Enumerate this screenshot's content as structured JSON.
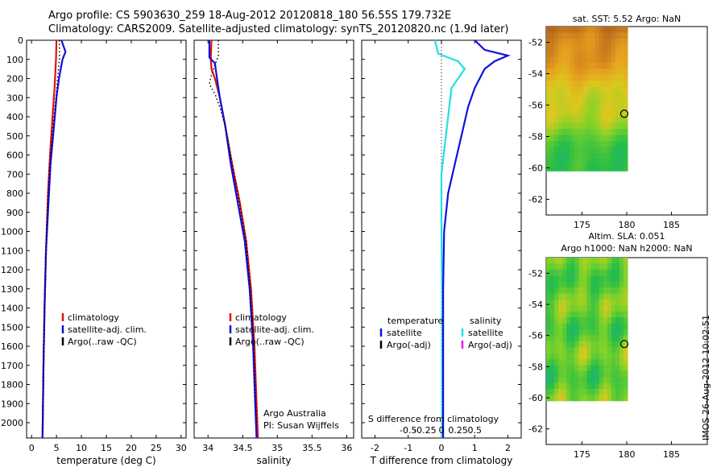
{
  "header": {
    "line1": "Argo profile: CS 5903630_259 18-Aug-2012 20120818_180 56.55S 179.732E",
    "line2": "Climatology: CARS2009. Satellite-adjusted climatology: synTS_20120820.nc (1.9d later)"
  },
  "stamp": "IMOS 26-Aug-2012 10:02:51",
  "colors": {
    "climatology": "#e01010",
    "satellite": "#1010e0",
    "argo": "#000000",
    "satellite_s": "#20e0e0",
    "argo_adj_s": "#e020e0"
  },
  "chart_data": [
    {
      "type": "line",
      "xlabel": "temperature (deg C)",
      "xlim": [
        -1,
        31
      ],
      "ylim": [
        2080,
        0
      ],
      "xticks": [
        0,
        5,
        10,
        15,
        20,
        25,
        30
      ],
      "yticks": [
        0,
        100,
        200,
        300,
        400,
        500,
        600,
        700,
        800,
        900,
        1000,
        1100,
        1200,
        1300,
        1400,
        1500,
        1600,
        1700,
        1800,
        1900,
        2000
      ],
      "legend": [
        "climatology",
        "satellite-adj. clim.",
        "Argo(..raw -QC)"
      ],
      "series": [
        {
          "name": "climatology",
          "points": [
            [
              5.0,
              0
            ],
            [
              4.9,
              100
            ],
            [
              4.6,
              250
            ],
            [
              4.2,
              400
            ],
            [
              3.7,
              600
            ],
            [
              3.3,
              800
            ],
            [
              2.9,
              1100
            ],
            [
              2.6,
              1400
            ],
            [
              2.4,
              1700
            ],
            [
              2.2,
              2080
            ]
          ]
        },
        {
          "name": "satellite-adj. clim.",
          "points": [
            [
              6.0,
              0
            ],
            [
              6.8,
              60
            ],
            [
              6.2,
              100
            ],
            [
              5.5,
              200
            ],
            [
              5.0,
              300
            ],
            [
              4.5,
              450
            ],
            [
              3.8,
              650
            ],
            [
              3.4,
              850
            ],
            [
              2.9,
              1100
            ],
            [
              2.6,
              1400
            ],
            [
              2.4,
              1700
            ],
            [
              2.2,
              2080
            ]
          ]
        },
        {
          "name": "Argo(..raw -QC)",
          "points": [
            [
              5.6,
              0
            ],
            [
              5.6,
              100
            ],
            [
              5.2,
              200
            ],
            [
              4.9,
              300
            ],
            [
              4.3,
              450
            ],
            [
              3.8,
              600
            ],
            [
              3.3,
              800
            ],
            [
              3.0,
              1000
            ],
            [
              2.7,
              1300
            ],
            [
              2.4,
              1600
            ],
            [
              2.3,
              1800
            ],
            [
              2.2,
              2050
            ]
          ]
        }
      ]
    },
    {
      "type": "line",
      "xlabel": "salinity",
      "xlim": [
        33.8,
        36.1
      ],
      "ylim": [
        2080,
        0
      ],
      "xticks": [
        34,
        34.5,
        35,
        35.5,
        36
      ],
      "legend": [
        "climatology",
        "satellite-adj. clim.",
        "Argo(..raw -QC)"
      ],
      "annotations": [
        "Argo Australia",
        "PI: Susan Wijffels"
      ],
      "series": [
        {
          "name": "climatology",
          "points": [
            [
              34.05,
              0
            ],
            [
              34.04,
              100
            ],
            [
              34.05,
              150
            ],
            [
              34.1,
              200
            ],
            [
              34.17,
              300
            ],
            [
              34.25,
              450
            ],
            [
              34.35,
              650
            ],
            [
              34.46,
              850
            ],
            [
              34.55,
              1050
            ],
            [
              34.62,
              1300
            ],
            [
              34.67,
              1600
            ],
            [
              34.7,
              1900
            ],
            [
              34.72,
              2080
            ]
          ]
        },
        {
          "name": "satellite-adj. clim.",
          "points": [
            [
              34.02,
              0
            ],
            [
              34.02,
              90
            ],
            [
              34.1,
              120
            ],
            [
              34.13,
              200
            ],
            [
              34.17,
              300
            ],
            [
              34.25,
              450
            ],
            [
              34.33,
              650
            ],
            [
              34.43,
              850
            ],
            [
              34.53,
              1050
            ],
            [
              34.6,
              1300
            ],
            [
              34.65,
              1600
            ],
            [
              34.68,
              1900
            ],
            [
              34.7,
              2080
            ]
          ]
        },
        {
          "name": "Argo(..raw -QC)",
          "points": [
            [
              34.15,
              0
            ],
            [
              34.15,
              80
            ],
            [
              34.05,
              180
            ],
            [
              34.02,
              230
            ],
            [
              34.1,
              280
            ],
            [
              34.17,
              350
            ],
            [
              34.25,
              450
            ],
            [
              34.35,
              650
            ],
            [
              34.45,
              850
            ],
            [
              34.55,
              1050
            ],
            [
              34.61,
              1300
            ],
            [
              34.66,
              1600
            ],
            [
              34.69,
              1900
            ],
            [
              34.7,
              2030
            ]
          ]
        }
      ]
    },
    {
      "type": "line",
      "xlabel": "T difference from climatology",
      "xlabel2": "S difference from climatology",
      "xlim": [
        -2.4,
        2.4
      ],
      "ylim": [
        2080,
        0
      ],
      "xticks": [
        -2,
        -1,
        0,
        1,
        2
      ],
      "xticks2": [
        "-0.5",
        "-0.25",
        "0",
        "0.25",
        "0.5"
      ],
      "legend_temperature": {
        "title": "temperature",
        "items": [
          "satellite",
          "Argo(-adj)"
        ]
      },
      "legend_salinity": {
        "title": "salinity",
        "items": [
          "satellite",
          "Argo(-adj)"
        ]
      },
      "series": [
        {
          "name": "temperature satellite",
          "points": [
            [
              1.0,
              0
            ],
            [
              1.3,
              50
            ],
            [
              2.0,
              80
            ],
            [
              1.6,
              110
            ],
            [
              1.3,
              150
            ],
            [
              1.0,
              250
            ],
            [
              0.8,
              350
            ],
            [
              0.6,
              500
            ],
            [
              0.4,
              650
            ],
            [
              0.2,
              800
            ],
            [
              0.08,
              1000
            ],
            [
              0.05,
              1300
            ],
            [
              0.05,
              2080
            ]
          ]
        },
        {
          "name": "salinity satellite",
          "points": [
            [
              -0.2,
              0
            ],
            [
              -0.1,
              70
            ],
            [
              0.5,
              110
            ],
            [
              0.7,
              150
            ],
            [
              0.3,
              250
            ],
            [
              0.2,
              400
            ],
            [
              0.1,
              550
            ],
            [
              0,
              700
            ],
            [
              0,
              1000
            ],
            [
              0.02,
              1300
            ],
            [
              0.02,
              2080
            ]
          ]
        }
      ]
    },
    {
      "type": "heatmap",
      "title": "sat. SST: 5.52  Argo: NaN",
      "xlim": [
        171,
        189
      ],
      "ylim": [
        -63,
        -51
      ],
      "xticks": [
        175,
        180,
        185
      ],
      "yticks": [
        -52,
        -54,
        -56,
        -58,
        -60,
        -62
      ],
      "marker": [
        179.73,
        -56.55
      ]
    },
    {
      "type": "heatmap",
      "title": "Altim. SLA: 0.051",
      "subtitle": "Argo h1000: NaN h2000: NaN",
      "xlim": [
        171,
        189
      ],
      "ylim": [
        -63,
        -51
      ],
      "xticks": [
        175,
        180,
        185
      ],
      "yticks": [
        -52,
        -54,
        -56,
        -58,
        -60,
        -62
      ],
      "marker": [
        179.73,
        -56.55
      ]
    }
  ]
}
